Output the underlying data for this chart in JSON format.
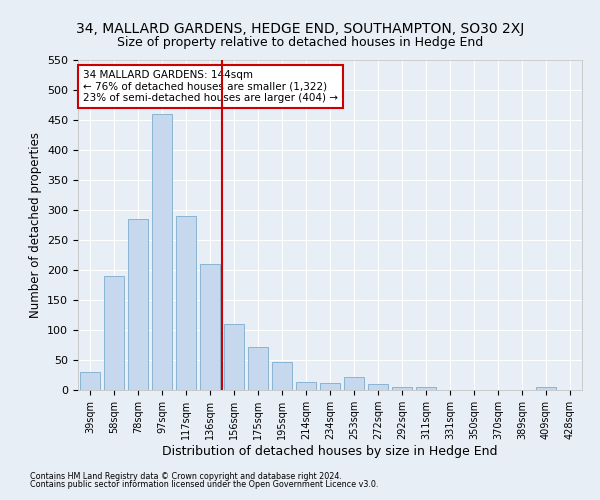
{
  "title": "34, MALLARD GARDENS, HEDGE END, SOUTHAMPTON, SO30 2XJ",
  "subtitle": "Size of property relative to detached houses in Hedge End",
  "xlabel": "Distribution of detached houses by size in Hedge End",
  "ylabel": "Number of detached properties",
  "categories": [
    "39sqm",
    "58sqm",
    "78sqm",
    "97sqm",
    "117sqm",
    "136sqm",
    "156sqm",
    "175sqm",
    "195sqm",
    "214sqm",
    "234sqm",
    "253sqm",
    "272sqm",
    "292sqm",
    "311sqm",
    "331sqm",
    "350sqm",
    "370sqm",
    "389sqm",
    "409sqm",
    "428sqm"
  ],
  "values": [
    30,
    190,
    285,
    460,
    290,
    210,
    110,
    72,
    47,
    13,
    12,
    22,
    10,
    5,
    5,
    0,
    0,
    0,
    0,
    5,
    0
  ],
  "bar_color": "#c5d8ed",
  "bar_edge_color": "#8ab4d4",
  "vline_x_index": 5,
  "vline_color": "#cc0000",
  "annotation_text": "34 MALLARD GARDENS: 144sqm\n← 76% of detached houses are smaller (1,322)\n23% of semi-detached houses are larger (404) →",
  "annotation_box_color": "#ffffff",
  "annotation_box_edge_color": "#cc0000",
  "ylim": [
    0,
    550
  ],
  "yticks": [
    0,
    50,
    100,
    150,
    200,
    250,
    300,
    350,
    400,
    450,
    500,
    550
  ],
  "title_fontsize": 10,
  "subtitle_fontsize": 9,
  "xlabel_fontsize": 9,
  "ylabel_fontsize": 8.5,
  "tick_fontsize": 8,
  "xtick_fontsize": 7,
  "footnote1": "Contains HM Land Registry data © Crown copyright and database right 2024.",
  "footnote2": "Contains public sector information licensed under the Open Government Licence v3.0.",
  "background_color": "#e8eef5",
  "grid_color": "#ffffff",
  "annotation_fontsize": 7.5
}
